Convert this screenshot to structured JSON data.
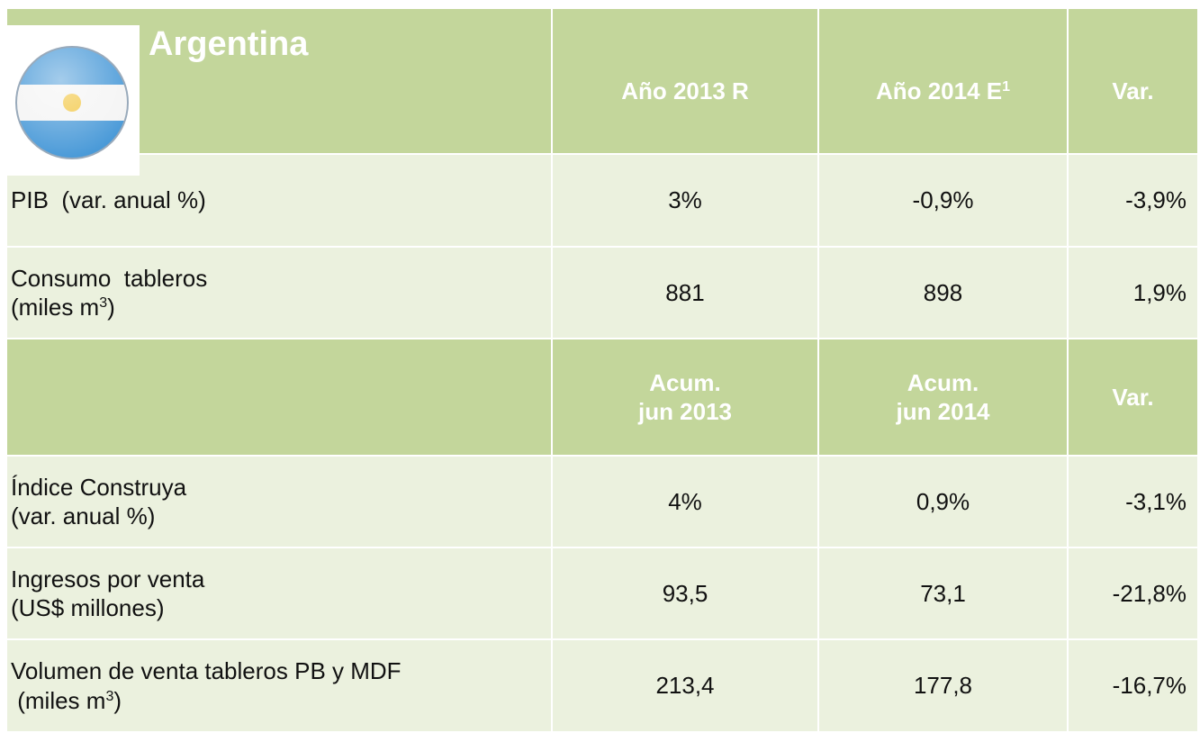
{
  "header": {
    "title": "Argentina"
  },
  "table": {
    "sections": [
      {
        "header": [
          [
            [
              {
                "text": "Año 2013 R"
              }
            ]
          ],
          [
            [
              {
                "text": "Año 2014 E"
              },
              {
                "sup": "1"
              }
            ]
          ],
          [
            [
              {
                "text": "Var."
              }
            ]
          ]
        ],
        "rows": [
          {
            "label": [
              [
                {
                  "text": "PIB  (var. anual %)"
                }
              ]
            ],
            "values": [
              "3%",
              "-0,9%",
              "-3,9%"
            ]
          },
          {
            "label": [
              [
                {
                  "text": "Consumo  tableros"
                }
              ],
              [
                {
                  "text": "(miles m"
                },
                {
                  "sup": "3"
                },
                {
                  "text": ")"
                }
              ]
            ],
            "values": [
              "881",
              "898",
              "1,9%"
            ]
          }
        ]
      },
      {
        "header": [
          [
            [
              {
                "text": "Acum."
              }
            ],
            [
              {
                "text": "jun 2013"
              }
            ]
          ],
          [
            [
              {
                "text": "Acum."
              }
            ],
            [
              {
                "text": "jun 2014"
              }
            ]
          ],
          [
            [
              {
                "text": "Var."
              }
            ]
          ]
        ],
        "rows": [
          {
            "label": [
              [
                {
                  "text": "Índice Construya"
                }
              ],
              [
                {
                  "text": "(var. anual %)"
                }
              ]
            ],
            "values": [
              "4%",
              "0,9%",
              "-3,1%"
            ]
          },
          {
            "label": [
              [
                {
                  "text": "Ingresos por venta"
                }
              ],
              [
                {
                  "text": "(US$ millones)"
                }
              ]
            ],
            "values": [
              "93,5",
              "73,1",
              "-21,8%"
            ]
          },
          {
            "label": [
              [
                {
                  "text": "Volumen de venta tableros PB y MDF"
                }
              ],
              [
                {
                  "text": " (miles m"
                },
                {
                  "sup": "3"
                },
                {
                  "text": ")"
                }
              ]
            ],
            "values": [
              "213,4",
              "177,8",
              "-16,7%"
            ]
          }
        ]
      }
    ]
  }
}
